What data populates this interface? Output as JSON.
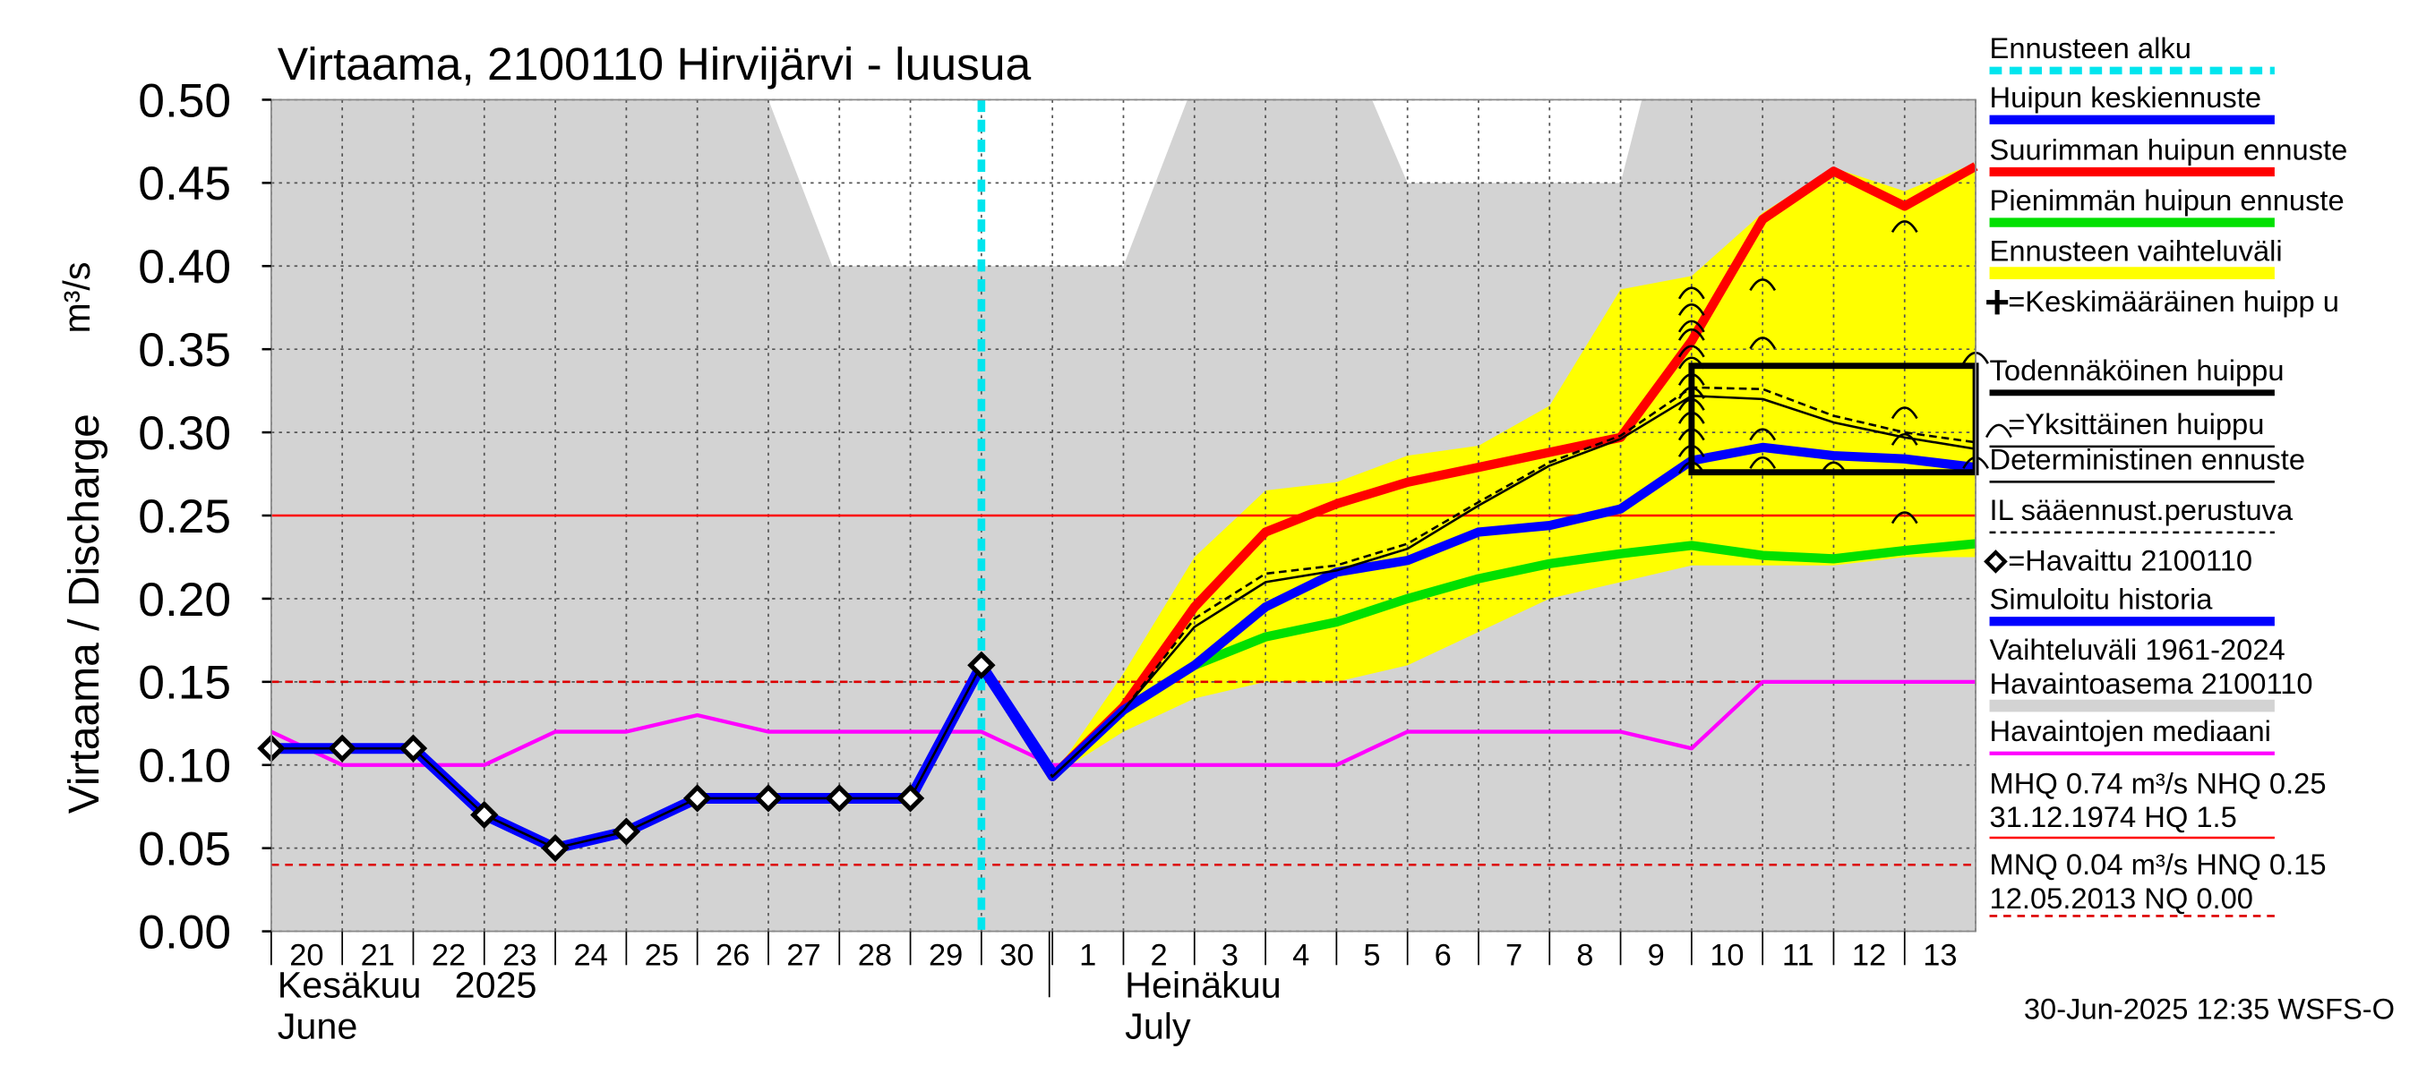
{
  "chart_data": {
    "type": "line",
    "title": "Virtaama, 2100110 Hirvijärvi - luusua",
    "ylabel": "Virtaama / Discharge",
    "yunit": "m³/s",
    "ylim": [
      0.0,
      0.5
    ],
    "yticks": [
      "0.00",
      "0.05",
      "0.10",
      "0.15",
      "0.20",
      "0.25",
      "0.30",
      "0.35",
      "0.40",
      "0.45",
      "0.50"
    ],
    "day_labels": [
      "20",
      "21",
      "22",
      "23",
      "24",
      "25",
      "26",
      "27",
      "28",
      "29",
      "30",
      "1",
      "2",
      "3",
      "4",
      "5",
      "6",
      "7",
      "8",
      "9",
      "10",
      "11",
      "12",
      "13"
    ],
    "month_labels": {
      "june_fi": "Kesäkuu",
      "year": "2025",
      "june_en": "June",
      "july_fi": "Heinäkuu",
      "july_en": "July"
    },
    "timestamp": "30-Jun-2025 12:35 WSFS-O",
    "forecast_start_day": 10,
    "series": [
      {
        "key": "observed",
        "name": "=Havaittu 2100110",
        "x": [
          0,
          1,
          2,
          3,
          4,
          5,
          6,
          7,
          8,
          9,
          10
        ],
        "values": [
          0.11,
          0.11,
          0.11,
          0.07,
          0.05,
          0.06,
          0.08,
          0.08,
          0.08,
          0.08,
          0.16
        ]
      },
      {
        "key": "simulated",
        "name": "Simuloitu historia",
        "x": [
          0,
          1,
          2,
          3,
          4,
          5,
          6,
          7,
          8,
          9,
          10,
          11
        ],
        "values": [
          0.11,
          0.11,
          0.11,
          0.07,
          0.05,
          0.06,
          0.08,
          0.08,
          0.08,
          0.08,
          0.16,
          0.095
        ]
      },
      {
        "key": "median",
        "name": "Havaintojen mediaani",
        "x": [
          0,
          1,
          2,
          3,
          4,
          5,
          6,
          7,
          8,
          9,
          10,
          11,
          12,
          13,
          14,
          15,
          16,
          17,
          18,
          19,
          20,
          21,
          22,
          23,
          24
        ],
        "values": [
          0.12,
          0.1,
          0.1,
          0.1,
          0.12,
          0.12,
          0.13,
          0.12,
          0.12,
          0.12,
          0.12,
          0.1,
          0.1,
          0.1,
          0.1,
          0.1,
          0.12,
          0.12,
          0.12,
          0.12,
          0.11,
          0.15,
          0.15,
          0.15,
          0.15
        ]
      },
      {
        "key": "max_peak",
        "name": "Suurimman huipun ennuste",
        "x": [
          10,
          11,
          12,
          13,
          14,
          15,
          16,
          17,
          18,
          19,
          20,
          21,
          22,
          23,
          24
        ],
        "values": [
          0.16,
          0.093,
          0.135,
          0.195,
          0.24,
          0.257,
          0.27,
          0.279,
          0.288,
          0.297,
          0.355,
          0.428,
          0.457,
          0.436,
          0.46
        ]
      },
      {
        "key": "min_peak",
        "name": "Pienimmän huipun ennuste",
        "x": [
          10,
          11,
          12,
          13,
          14,
          15,
          16,
          17,
          18,
          19,
          20,
          21,
          22,
          23,
          24
        ],
        "values": [
          0.16,
          0.093,
          0.133,
          0.16,
          0.177,
          0.186,
          0.2,
          0.212,
          0.221,
          0.227,
          0.232,
          0.226,
          0.224,
          0.229,
          0.233
        ]
      },
      {
        "key": "mean_peak",
        "name": "Huipun keskiennuste",
        "x": [
          10,
          11,
          12,
          13,
          14,
          15,
          16,
          17,
          18,
          19,
          20,
          21,
          22,
          23,
          24
        ],
        "values": [
          0.16,
          0.093,
          0.133,
          0.16,
          0.195,
          0.216,
          0.223,
          0.24,
          0.244,
          0.254,
          0.283,
          0.291,
          0.286,
          0.284,
          0.279
        ]
      },
      {
        "key": "deterministic",
        "name": "Deterministinen ennuste",
        "x": [
          10,
          11,
          12,
          13,
          14,
          15,
          16,
          17,
          18,
          19,
          20,
          21,
          22,
          23,
          24
        ],
        "values": [
          0.16,
          0.093,
          0.133,
          0.183,
          0.21,
          0.217,
          0.23,
          0.256,
          0.28,
          0.296,
          0.322,
          0.32,
          0.306,
          0.297,
          0.29
        ]
      },
      {
        "key": "il_forecast",
        "name": "IL sääennust.perustuva",
        "x": [
          10,
          11,
          12,
          13,
          14,
          15,
          16,
          17,
          18,
          19,
          20,
          21,
          22,
          23,
          24
        ],
        "values": [
          0.16,
          0.093,
          0.133,
          0.188,
          0.215,
          0.22,
          0.233,
          0.258,
          0.282,
          0.298,
          0.327,
          0.326,
          0.31,
          0.3,
          0.294
        ]
      }
    ],
    "band": {
      "name": "Ennusteen vaihteluväli",
      "x": [
        10,
        11,
        12,
        13,
        14,
        15,
        16,
        17,
        18,
        19,
        20,
        21,
        22,
        23,
        24
      ],
      "upper": [
        0.16,
        0.093,
        0.155,
        0.225,
        0.265,
        0.27,
        0.286,
        0.292,
        0.316,
        0.386,
        0.394,
        0.432,
        0.459,
        0.445,
        0.462
      ],
      "lower": [
        0.16,
        0.093,
        0.12,
        0.14,
        0.15,
        0.15,
        0.16,
        0.18,
        0.2,
        0.21,
        0.22,
        0.22,
        0.22,
        0.225,
        0.225
      ]
    },
    "history_range": {
      "name": "Vaihteluväli 1961-2024",
      "x": [
        0,
        7,
        7.9,
        8,
        12,
        12.9,
        13.5,
        15.5,
        16,
        19,
        19.3,
        20,
        24
      ],
      "upper": [
        0.5,
        0.5,
        0.4,
        0.4,
        0.4,
        0.5,
        0.5,
        0.5,
        0.45,
        0.45,
        0.5,
        0.5,
        0.5
      ]
    },
    "single_peaks": [
      {
        "x": 20,
        "y": [
          0.385,
          0.375,
          0.365,
          0.36,
          0.35,
          0.343,
          0.333,
          0.325,
          0.318,
          0.31,
          0.3,
          0.29,
          0.28
        ]
      },
      {
        "x": 21,
        "y": [
          0.39,
          0.355,
          0.3,
          0.283
        ]
      },
      {
        "x": 22,
        "y": [
          0.28
        ]
      },
      {
        "x": 23,
        "y": [
          0.425,
          0.313,
          0.297,
          0.25
        ]
      },
      {
        "x": 24,
        "y": [
          0.346,
          0.283
        ]
      }
    ],
    "probable_peak_box": {
      "x": [
        20,
        24
      ],
      "y": [
        0.276,
        0.34
      ]
    },
    "reference_lines": [
      {
        "key": "nhq",
        "value": 0.25,
        "style": "solid",
        "color": "#ff0000"
      },
      {
        "key": "hnq",
        "value": 0.15,
        "style": "dashed",
        "color": "#dd0000"
      },
      {
        "key": "mnq",
        "value": 0.04,
        "style": "dashed",
        "color": "#dd0000"
      }
    ],
    "legend": [
      {
        "key": "forecast_start",
        "label": "Ennusteen alku",
        "color": "#00e5ee",
        "style": "dotted"
      },
      {
        "key": "mean_peak",
        "label": "Huipun keskiennuste",
        "color": "#0000ff",
        "style": "thick"
      },
      {
        "key": "max_peak",
        "label": "Suurimman huipun ennuste",
        "color": "#ff0000",
        "style": "thick"
      },
      {
        "key": "min_peak",
        "label": "Pienimmän huipun ennuste",
        "color": "#00e000",
        "style": "thick"
      },
      {
        "key": "band",
        "label": "Ennusteen vaihteluväli",
        "color": "#ffff00",
        "style": "thick"
      },
      {
        "key": "avg_peak",
        "label": "=Keskimääräinen huipp u",
        "color": "#000000",
        "style": "none"
      },
      {
        "key": "probable_peak",
        "label": "Todennäköinen huippu",
        "color": "#000000",
        "style": "thick"
      },
      {
        "key": "single_peak",
        "label": "=Yksittäinen huippu",
        "color": "#000000",
        "style": "thin"
      },
      {
        "key": "deterministic",
        "label": "Deterministinen ennuste",
        "color": "#000000",
        "style": "thin"
      },
      {
        "key": "il_forecast",
        "label": "IL sääennust.perustuva",
        "color": "#000000",
        "style": "dashed"
      },
      {
        "key": "observed",
        "label": "=Havaittu 2100110",
        "color": "#000000",
        "style": "none"
      },
      {
        "key": "simulated",
        "label": "Simuloitu historia",
        "color": "#0000ff",
        "style": "thick"
      },
      {
        "key": "history_range",
        "label": "Vaihteluväli 1961-2024\n Havaintoasema 2100110",
        "color": "#d3d3d3",
        "style": "thick"
      },
      {
        "key": "median",
        "label": "Havaintojen mediaani",
        "color": "#ff00ff",
        "style": "medium"
      },
      {
        "key": "hq_stats",
        "label": "MHQ 0.74 m³/s NHQ 0.25\n31.12.1974 HQ  1.5",
        "color": "#ff0000",
        "style": "thin"
      },
      {
        "key": "nq_stats",
        "label": "MNQ 0.04 m³/s HNQ 0.15\n12.05.2013 NQ 0.00",
        "color": "#dd0000",
        "style": "dashed"
      }
    ],
    "colors": {
      "observed": "#000000",
      "simulated": "#0000ff",
      "median": "#ff00ff",
      "max_peak": "#ff0000",
      "min_peak": "#00e000",
      "mean_peak": "#0000ff",
      "deterministic": "#000000",
      "il_forecast": "#000000",
      "band": "#ffff00",
      "history_range": "#d3d3d3",
      "forecast_start": "#00e5ee"
    }
  }
}
